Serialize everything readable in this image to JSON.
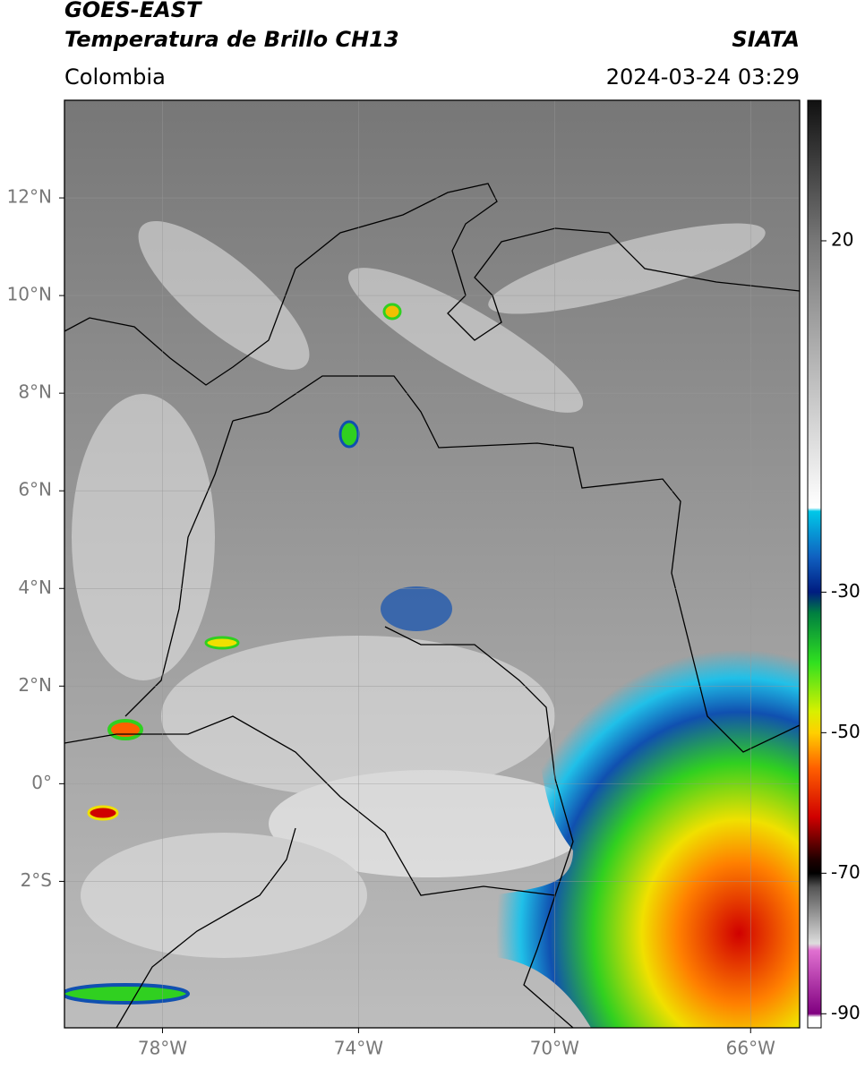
{
  "header": {
    "satellite": "GOES-EAST",
    "product": "Temperatura de Brillo CH13",
    "source": "SIATA",
    "region": "Colombia",
    "datetime": "2024-03-24 03:29"
  },
  "map": {
    "lon_range": [
      -80,
      -65
    ],
    "lat_range": [
      -5,
      14
    ],
    "lon_ticks": [
      {
        "value": -78,
        "label": "78°W"
      },
      {
        "value": -74,
        "label": "74°W"
      },
      {
        "value": -70,
        "label": "70°W"
      },
      {
        "value": -66,
        "label": "66°W"
      }
    ],
    "lat_ticks": [
      {
        "value": 12,
        "label": "12°N"
      },
      {
        "value": 10,
        "label": "10°N"
      },
      {
        "value": 8,
        "label": "8°N"
      },
      {
        "value": 6,
        "label": "6°N"
      },
      {
        "value": 4,
        "label": "4°N"
      },
      {
        "value": 2,
        "label": "2°N"
      },
      {
        "value": 0,
        "label": "0°"
      },
      {
        "value": -2,
        "label": "2°S"
      }
    ]
  },
  "colorbar": {
    "range": [
      -92,
      40
    ],
    "ticks": [
      20,
      -30,
      -50,
      -70,
      -90
    ],
    "stops": [
      {
        "value": 40,
        "color": "#111111"
      },
      {
        "value": 20,
        "color": "#777777"
      },
      {
        "value": -18,
        "color": "#ffffff"
      },
      {
        "value": -18.5,
        "color": "#00c8e8"
      },
      {
        "value": -25,
        "color": "#1060c0"
      },
      {
        "value": -30,
        "color": "#001c80"
      },
      {
        "value": -33,
        "color": "#008040"
      },
      {
        "value": -40,
        "color": "#30e020"
      },
      {
        "value": -47,
        "color": "#d8f000"
      },
      {
        "value": -50,
        "color": "#ffd000"
      },
      {
        "value": -55,
        "color": "#ff6000"
      },
      {
        "value": -62,
        "color": "#d00000"
      },
      {
        "value": -68,
        "color": "#200000"
      },
      {
        "value": -70,
        "color": "#000000"
      },
      {
        "value": -72,
        "color": "#555555"
      },
      {
        "value": -80,
        "color": "#dddddd"
      },
      {
        "value": -81,
        "color": "#e070d0"
      },
      {
        "value": -90,
        "color": "#800080"
      },
      {
        "value": -90.5,
        "color": "#ffffff"
      },
      {
        "value": -92,
        "color": "#ffffff"
      }
    ]
  }
}
